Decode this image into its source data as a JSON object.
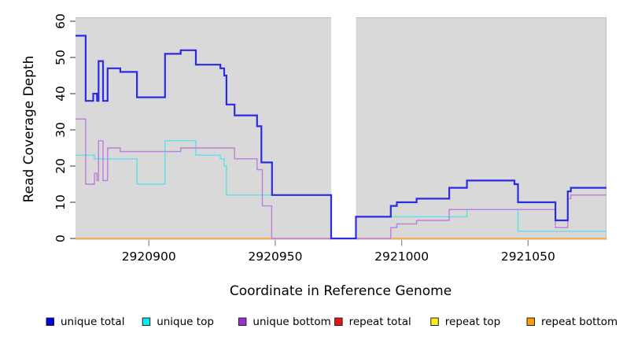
{
  "chart_data": {
    "type": "line",
    "subtype": "step",
    "title": "",
    "xlabel": "Coordinate in Reference Genome",
    "ylabel": "Read Coverage Depth",
    "xlim": [
      2920871,
      2921081
    ],
    "ylim": [
      0,
      60
    ],
    "x_ticks": [
      2920900,
      2920950,
      2921000,
      2921050
    ],
    "y_ticks": [
      0,
      10,
      20,
      30,
      40,
      50,
      60
    ],
    "grid": false,
    "legend_position": "bottom",
    "panel_background": "#d9d9d9",
    "panel_border_color": "#bdbdbd",
    "masked_region": {
      "x_start": 2920972.1,
      "x_end": 2920981.9,
      "color": "#ffffff"
    },
    "draw_order": [
      "repeat total",
      "repeat top",
      "repeat bottom",
      "unique top",
      "unique bottom",
      "unique total"
    ],
    "series": [
      {
        "name": "unique total",
        "line_color": "#2b2be2",
        "legend_color": "#0000e0",
        "line_width": 2.2,
        "points": [
          [
            2920871,
            56
          ],
          [
            2920875,
            38
          ],
          [
            2920878,
            40
          ],
          [
            2920879.5,
            38
          ],
          [
            2920880.1,
            49
          ],
          [
            2920881.9,
            38
          ],
          [
            2920883.7,
            47
          ],
          [
            2920888.7,
            46
          ],
          [
            2920895.3,
            39
          ],
          [
            2920906.4,
            51
          ],
          [
            2920912.6,
            52
          ],
          [
            2920918.6,
            48
          ],
          [
            2920928.3,
            47
          ],
          [
            2920929.8,
            45
          ],
          [
            2920930.7,
            37
          ],
          [
            2920933.9,
            34
          ],
          [
            2920942.8,
            31
          ],
          [
            2920944.5,
            21
          ],
          [
            2920948.7,
            12
          ],
          [
            2920972.1,
            0
          ],
          [
            2920981.9,
            6
          ],
          [
            2920995.7,
            9
          ],
          [
            2920998.1,
            10
          ],
          [
            2921005.9,
            11
          ],
          [
            2921018.8,
            14
          ],
          [
            2921025.8,
            16
          ],
          [
            2921044.6,
            15
          ],
          [
            2921046,
            10
          ],
          [
            2921060.8,
            5
          ],
          [
            2921065.7,
            13
          ],
          [
            2921066.9,
            14
          ]
        ]
      },
      {
        "name": "unique top",
        "line_color": "#5fe0e8",
        "legend_color": "#00eef2",
        "line_width": 1.4,
        "points": [
          [
            2920871,
            23
          ],
          [
            2920878.5,
            22
          ],
          [
            2920895.3,
            15
          ],
          [
            2920906.4,
            27
          ],
          [
            2920918.6,
            23
          ],
          [
            2920928.3,
            22
          ],
          [
            2920929.8,
            20
          ],
          [
            2920930.7,
            12
          ],
          [
            2920972.1,
            0
          ],
          [
            2920981.9,
            6
          ],
          [
            2921025.8,
            8
          ],
          [
            2921046,
            2
          ]
        ]
      },
      {
        "name": "unique bottom",
        "line_color": "#bd7ddd",
        "legend_color": "#9a30d2",
        "line_width": 1.4,
        "points": [
          [
            2920871,
            33
          ],
          [
            2920875,
            15
          ],
          [
            2920878.5,
            18
          ],
          [
            2920879.5,
            16
          ],
          [
            2920880.1,
            27
          ],
          [
            2920881.9,
            16
          ],
          [
            2920883.7,
            25
          ],
          [
            2920888.7,
            24
          ],
          [
            2920912.6,
            25
          ],
          [
            2920933.9,
            22
          ],
          [
            2920942.8,
            19
          ],
          [
            2920944.9,
            9
          ],
          [
            2920948.6,
            0
          ],
          [
            2920995.7,
            3
          ],
          [
            2920998.1,
            4
          ],
          [
            2921005.9,
            5
          ],
          [
            2921018.8,
            8
          ],
          [
            2921060.8,
            3
          ],
          [
            2921065.7,
            11
          ],
          [
            2921066.9,
            12
          ]
        ]
      },
      {
        "name": "repeat total",
        "line_color": "#e02020",
        "legend_color": "#ee1111",
        "line_width": 1,
        "points": [
          [
            2920871,
            0
          ]
        ]
      },
      {
        "name": "repeat top",
        "line_color": "#f5e626",
        "legend_color": "#fbf21b",
        "line_width": 1,
        "points": [
          [
            2920871,
            0
          ]
        ]
      },
      {
        "name": "repeat bottom",
        "line_color": "#ffa520",
        "legend_color": "#ff9d00",
        "line_width": 1.6,
        "points": [
          [
            2920871,
            0
          ]
        ]
      }
    ]
  }
}
